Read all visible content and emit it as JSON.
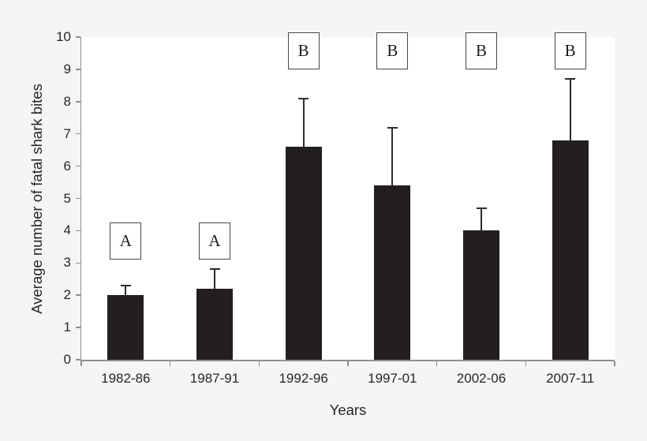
{
  "figure": {
    "background_color": "#f5f5f6",
    "plot_background_color": "#ffffff",
    "bar_color": "#231f20",
    "error_bar_color": "#2e2a2b",
    "axis_color": "#8f8f8f",
    "text_color": "#262626"
  },
  "chart_data": {
    "type": "bar",
    "title": "",
    "xlabel": "Years",
    "ylabel": "Average number of fatal shark bites",
    "categories": [
      "1982-86",
      "1987-91",
      "1992-96",
      "1997-01",
      "2002-06",
      "2007-11"
    ],
    "values": [
      2.0,
      2.2,
      6.6,
      5.4,
      4.0,
      6.8
    ],
    "error_upper": [
      0.3,
      0.6,
      1.5,
      1.8,
      0.7,
      1.9
    ],
    "annotations": [
      {
        "label": "A",
        "category": "1982-86",
        "y_center": 3.69
      },
      {
        "label": "A",
        "category": "1987-91",
        "y_center": 3.69
      },
      {
        "label": "B",
        "category": "1992-96",
        "y_center": 9.57
      },
      {
        "label": "B",
        "category": "1997-01",
        "y_center": 9.57
      },
      {
        "label": "B",
        "category": "2002-06",
        "y_center": 9.57
      },
      {
        "label": "B",
        "category": "2007-11",
        "y_center": 9.57
      }
    ],
    "ylim": [
      0,
      10
    ],
    "yticks": [
      0,
      1,
      2,
      3,
      4,
      5,
      6,
      7,
      8,
      9,
      10
    ],
    "grid": false,
    "legend": null
  }
}
